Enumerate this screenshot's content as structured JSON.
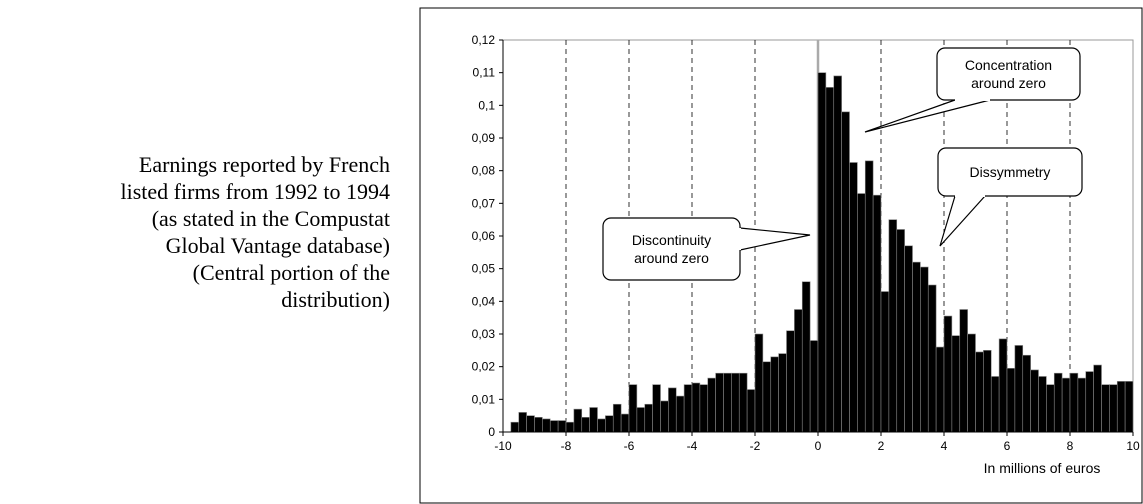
{
  "caption": [
    "Earnings reported by French",
    "listed firms from 1992 to 1994",
    "(as stated in the Compustat",
    "Global Vantage database)",
    "(Central portion of the",
    "distribution)"
  ],
  "chart_data": {
    "type": "histogram",
    "xlabel": "In millions of euros",
    "color": "#000000",
    "bins": [
      -10,
      -9.75,
      -9.5,
      -9.25,
      -9,
      -8.75,
      -8.5,
      -8.25,
      -8,
      -7.75,
      -7.5,
      -7.25,
      -7,
      -6.75,
      -6.5,
      -6.25,
      -6,
      -5.75,
      -5.5,
      -5.25,
      -5,
      -4.75,
      -4.5,
      -4.25,
      -4,
      -3.75,
      -3.5,
      -3.25,
      -3,
      -2.75,
      -2.5,
      -2.25,
      -2,
      -1.75,
      -1.5,
      -1.25,
      -1,
      -0.75,
      -0.5,
      -0.25,
      0,
      0.25,
      0.5,
      0.75,
      1,
      1.25,
      1.5,
      1.75,
      2,
      2.25,
      2.5,
      2.75,
      3,
      3.25,
      3.5,
      3.75,
      4,
      4.25,
      4.5,
      4.75,
      5,
      5.25,
      5.5,
      5.75,
      6,
      6.25,
      6.5,
      6.75,
      7,
      7.25,
      7.5,
      7.75,
      8,
      8.25,
      8.5,
      8.75,
      9,
      9.25,
      9.5,
      9.75,
      10
    ],
    "values": [
      0,
      0.003,
      0.006,
      0.005,
      0.0045,
      0.004,
      0.0035,
      0.0035,
      0.003,
      0.007,
      0.0045,
      0.0075,
      0.004,
      0.005,
      0.0085,
      0.0055,
      0.0145,
      0.0075,
      0.0085,
      0.0145,
      0.0095,
      0.0135,
      0.011,
      0.0145,
      0.015,
      0.0145,
      0.0165,
      0.018,
      0.018,
      0.018,
      0.018,
      0.013,
      0.03,
      0.0215,
      0.023,
      0.024,
      0.031,
      0.0375,
      0.046,
      0.028,
      0.11,
      0.1055,
      0.109,
      0.098,
      0.0825,
      0.073,
      0.083,
      0.0725,
      0.043,
      0.065,
      0.062,
      0.057,
      0.052,
      0.0505,
      0.045,
      0.026,
      0.0355,
      0.0295,
      0.0375,
      0.03,
      0.0245,
      0.025,
      0.017,
      0.0285,
      0.0195,
      0.0265,
      0.0235,
      0.019,
      0.017,
      0.0145,
      0.018,
      0.0165,
      0.018,
      0.0165,
      0.0185,
      0.0205,
      0.0145,
      0.0145,
      0.0155,
      0.0155
    ],
    "xlim": [
      -10,
      10
    ],
    "xticks": [
      -10,
      -8,
      -6,
      -4,
      -2,
      0,
      2,
      4,
      6,
      8,
      10
    ],
    "ylim": [
      0,
      0.12
    ],
    "yticks": [
      0,
      {
        "value": 0.01,
        "label": "0,01"
      },
      {
        "value": 0.02,
        "label": "0,02"
      },
      {
        "value": 0.03,
        "label": "0,03"
      },
      {
        "value": 0.04,
        "label": "0,04"
      },
      {
        "value": 0.05,
        "label": "0,05"
      },
      {
        "value": 0.06,
        "label": "0,06"
      },
      {
        "value": 0.07,
        "label": "0,07"
      },
      {
        "value": 0.08,
        "label": "0,08"
      },
      {
        "value": 0.09,
        "label": "0,09"
      },
      {
        "value": 0.1,
        "label": "0,1"
      },
      {
        "value": 0.11,
        "label": "0,11"
      },
      {
        "value": 0.12,
        "label": "0,12"
      }
    ],
    "grid": true,
    "annotations": [
      {
        "text": [
          "Concentration",
          "around zero"
        ]
      },
      {
        "text": [
          "Dissymmetry"
        ]
      },
      {
        "text": [
          "Discontinuity",
          "around zero"
        ]
      }
    ]
  }
}
